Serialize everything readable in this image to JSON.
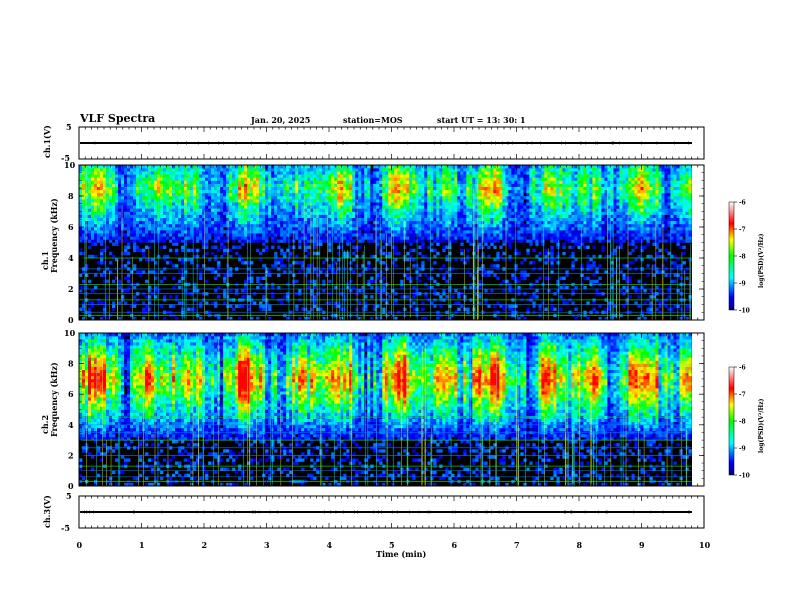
{
  "header": {
    "title": "VLF Spectra",
    "date": "Jan. 20, 2025",
    "station": "station=MOS",
    "start": "start UT =  13: 30: 1"
  },
  "colors": {
    "background": "#000000",
    "frame": "#000000",
    "colormap": [
      "#00007f",
      "#0000ff",
      "#0080ff",
      "#00ffff",
      "#00ff00",
      "#ffff00",
      "#ff8000",
      "#ff0000",
      "#ffffff"
    ]
  },
  "chart_data": [
    {
      "type": "line",
      "name": "ch1_waveform",
      "ylabel": "ch.1(V)",
      "ylim": [
        -5,
        5
      ],
      "yticks": [
        "5",
        "-5"
      ],
      "xlim": [
        0,
        10
      ],
      "values_approx_level": 0
    },
    {
      "type": "heatmap",
      "name": "ch1_spectrogram",
      "ylabel": "ch.1 Frequency (kHz)",
      "ylim": [
        0,
        10
      ],
      "yticks": [
        "0",
        "2",
        "4",
        "6",
        "8",
        "10"
      ],
      "xlim": [
        0,
        9.8
      ],
      "colorbar": {
        "label": "log(PSD)(V²/Hz)",
        "range": [
          -10,
          -6
        ],
        "ticks": [
          "-6",
          "-7",
          "-8",
          "-9",
          "-10"
        ]
      },
      "band_peak_khz": [
        8.0,
        9.0
      ],
      "tone_lines_khz": [
        0.3,
        0.5,
        1.0,
        1.3,
        1.7,
        2.0,
        2.3,
        3.0,
        3.3,
        4.0
      ]
    },
    {
      "type": "heatmap",
      "name": "ch2_spectrogram",
      "ylabel": "ch.2 Frequency (kHz)",
      "ylim": [
        0,
        10
      ],
      "yticks": [
        "0",
        "2",
        "4",
        "6",
        "8",
        "10"
      ],
      "xlim": [
        0,
        9.8
      ],
      "colorbar": {
        "label": "log(PSD)(V²/Hz)",
        "range": [
          -10,
          -6
        ],
        "ticks": [
          "-6",
          "-7",
          "-8",
          "-9",
          "-10"
        ]
      },
      "band_peak_khz": [
        6.0,
        8.0
      ],
      "tone_lines_khz": [
        0.3,
        0.6,
        1.0,
        1.3,
        2.0,
        2.5,
        3.0,
        3.5,
        4.0,
        4.5
      ]
    },
    {
      "type": "line",
      "name": "ch3_waveform",
      "ylabel": "ch.3(V)",
      "ylim": [
        -5,
        5
      ],
      "yticks": [
        "5",
        "-5"
      ],
      "xlim": [
        0,
        10
      ],
      "values_approx_level": 0
    }
  ],
  "xaxis": {
    "label": "Time (min)",
    "ticks": [
      "0",
      "1",
      "2",
      "3",
      "4",
      "5",
      "6",
      "7",
      "8",
      "9",
      "10"
    ],
    "range": [
      0,
      10
    ]
  }
}
